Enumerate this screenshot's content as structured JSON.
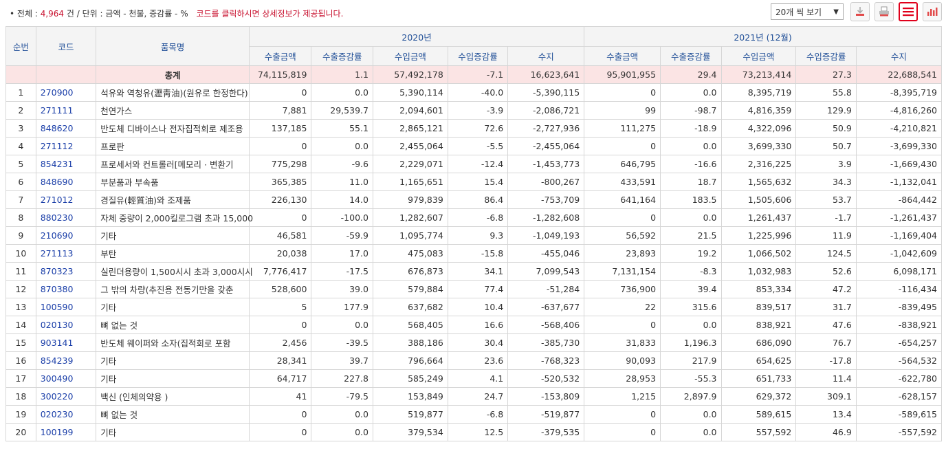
{
  "summary": {
    "bullet": "•",
    "total_label": "전체 :",
    "total_count": "4,964",
    "count_unit": "건",
    "sep": "/",
    "unit_text": "단위 : 금액 - 천불, 증감률 - %",
    "note": "코드를 클릭하시면 상세정보가 제공됩니다."
  },
  "toolbar": {
    "page_size": "20개 씩 보기",
    "buttons": [
      "download-icon",
      "print-icon",
      "list-icon",
      "chart-icon"
    ]
  },
  "table": {
    "headers": {
      "rank": "순번",
      "code": "코드",
      "name": "품목명",
      "year1": "2020년",
      "year2": "2021년 (12월)",
      "sub": [
        "수출금액",
        "수출증감률",
        "수입금액",
        "수입증감률",
        "수지"
      ]
    },
    "total": [
      "",
      "",
      "총계",
      "74,115,819",
      "1.1",
      "57,492,178",
      "-7.1",
      "16,623,641",
      "95,901,955",
      "29.4",
      "73,213,414",
      "27.3",
      "22,688,541"
    ],
    "rows": [
      [
        "1",
        "270900",
        "석유와 역청유(瀝靑油)(원유로 한정한다)",
        "0",
        "0.0",
        "5,390,114",
        "-40.0",
        "-5,390,115",
        "0",
        "0.0",
        "8,395,719",
        "55.8",
        "-8,395,719"
      ],
      [
        "2",
        "271111",
        "천연가스",
        "7,881",
        "29,539.7",
        "2,094,601",
        "-3.9",
        "-2,086,721",
        "99",
        "-98.7",
        "4,816,359",
        "129.9",
        "-4,816,260"
      ],
      [
        "3",
        "848620",
        "반도체 디바이스나 전자집적회로 제조용",
        "137,185",
        "55.1",
        "2,865,121",
        "72.6",
        "-2,727,936",
        "111,275",
        "-18.9",
        "4,322,096",
        "50.9",
        "-4,210,821"
      ],
      [
        "4",
        "271112",
        "프로판",
        "0",
        "0.0",
        "2,455,064",
        "-5.5",
        "-2,455,064",
        "0",
        "0.0",
        "3,699,330",
        "50.7",
        "-3,699,330"
      ],
      [
        "5",
        "854231",
        "프로세서와 컨트롤러[메모리 · 변환기",
        "775,298",
        "-9.6",
        "2,229,071",
        "-12.4",
        "-1,453,773",
        "646,795",
        "-16.6",
        "2,316,225",
        "3.9",
        "-1,669,430"
      ],
      [
        "6",
        "848690",
        "부분품과 부속품",
        "365,385",
        "11.0",
        "1,165,651",
        "15.4",
        "-800,267",
        "433,591",
        "18.7",
        "1,565,632",
        "34.3",
        "-1,132,041"
      ],
      [
        "7",
        "271012",
        "경질유(輕質油)와 조제품",
        "226,130",
        "14.0",
        "979,839",
        "86.4",
        "-753,709",
        "641,164",
        "183.5",
        "1,505,606",
        "53.7",
        "-864,442"
      ],
      [
        "8",
        "880230",
        "자체 중량이 2,000킬로그램 초과 15,000",
        "0",
        "-100.0",
        "1,282,607",
        "-6.8",
        "-1,282,608",
        "0",
        "0.0",
        "1,261,437",
        "-1.7",
        "-1,261,437"
      ],
      [
        "9",
        "210690",
        "기타",
        "46,581",
        "-59.9",
        "1,095,774",
        "9.3",
        "-1,049,193",
        "56,592",
        "21.5",
        "1,225,996",
        "11.9",
        "-1,169,404"
      ],
      [
        "10",
        "271113",
        "부탄",
        "20,038",
        "17.0",
        "475,083",
        "-15.8",
        "-455,046",
        "23,893",
        "19.2",
        "1,066,502",
        "124.5",
        "-1,042,609"
      ],
      [
        "11",
        "870323",
        "실린더용량이 1,500시시 초과 3,000시시",
        "7,776,417",
        "-17.5",
        "676,873",
        "34.1",
        "7,099,543",
        "7,131,154",
        "-8.3",
        "1,032,983",
        "52.6",
        "6,098,171"
      ],
      [
        "12",
        "870380",
        "그 밖의 차량(추진용 전동기만을 갖춘",
        "528,600",
        "39.0",
        "579,884",
        "77.4",
        "-51,284",
        "736,900",
        "39.4",
        "853,334",
        "47.2",
        "-116,434"
      ],
      [
        "13",
        "100590",
        "기타",
        "5",
        "177.9",
        "637,682",
        "10.4",
        "-637,677",
        "22",
        "315.6",
        "839,517",
        "31.7",
        "-839,495"
      ],
      [
        "14",
        "020130",
        "뼈 없는 것",
        "0",
        "0.0",
        "568,405",
        "16.6",
        "-568,406",
        "0",
        "0.0",
        "838,921",
        "47.6",
        "-838,921"
      ],
      [
        "15",
        "903141",
        "반도체 웨이퍼와 소자(집적회로 포함",
        "2,456",
        "-39.5",
        "388,186",
        "30.4",
        "-385,730",
        "31,833",
        "1,196.3",
        "686,090",
        "76.7",
        "-654,257"
      ],
      [
        "16",
        "854239",
        "기타",
        "28,341",
        "39.7",
        "796,664",
        "23.6",
        "-768,323",
        "90,093",
        "217.9",
        "654,625",
        "-17.8",
        "-564,532"
      ],
      [
        "17",
        "300490",
        "기타",
        "64,717",
        "227.8",
        "585,249",
        "4.1",
        "-520,532",
        "28,953",
        "-55.3",
        "651,733",
        "11.4",
        "-622,780"
      ],
      [
        "18",
        "300220",
        "백신 (인체의약용 )",
        "41",
        "-79.5",
        "153,849",
        "24.7",
        "-153,809",
        "1,215",
        "2,897.9",
        "629,372",
        "309.1",
        "-628,157"
      ],
      [
        "19",
        "020230",
        "뼈 없는 것",
        "0",
        "0.0",
        "519,877",
        "-6.8",
        "-519,877",
        "0",
        "0.0",
        "589,615",
        "13.4",
        "-589,615"
      ],
      [
        "20",
        "100199",
        "기타",
        "0",
        "0.0",
        "379,534",
        "12.5",
        "-379,535",
        "0",
        "0.0",
        "557,592",
        "46.9",
        "-557,592"
      ]
    ]
  },
  "colors": {
    "accent": "#c8102e",
    "header_text": "#1f4e97",
    "code_link": "#1a3ea8",
    "total_bg": "#fbe4e4"
  }
}
